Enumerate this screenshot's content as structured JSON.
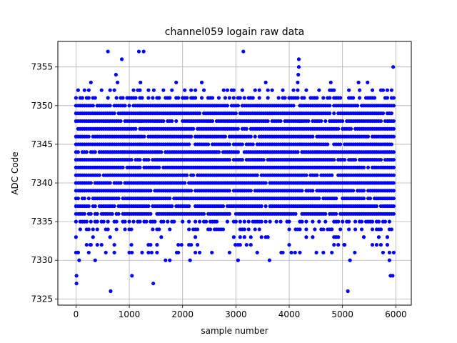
{
  "chart_data": {
    "type": "scatter",
    "title": "channel059 logain raw data",
    "xlabel": "sample number",
    "ylabel": "ADC Code",
    "xlim": [
      -340,
      6290
    ],
    "ylim": [
      7324.2,
      7358.3
    ],
    "xticks": [
      0,
      1000,
      2000,
      3000,
      4000,
      5000,
      6000
    ],
    "yticks": [
      7325,
      7330,
      7335,
      7340,
      7345,
      7350,
      7355
    ],
    "grid": true,
    "marker_color": "#0000ff",
    "band": {
      "x_start": 0,
      "x_end": 5960,
      "x_step": 40,
      "dense_levels": [
        7336,
        7337,
        7338,
        7339,
        7340,
        7341,
        7342,
        7343,
        7344,
        7345,
        7346,
        7347,
        7348,
        7349,
        7350
      ],
      "sparse_levels": [
        7331,
        7332,
        7333,
        7334,
        7335,
        7351,
        7352
      ]
    },
    "outliers": [
      {
        "x": 10,
        "y": 7327
      },
      {
        "x": 10,
        "y": 7328
      },
      {
        "x": 40,
        "y": 7331
      },
      {
        "x": 60,
        "y": 7330
      },
      {
        "x": 120,
        "y": 7351
      },
      {
        "x": 270,
        "y": 7332
      },
      {
        "x": 280,
        "y": 7353
      },
      {
        "x": 360,
        "y": 7330
      },
      {
        "x": 600,
        "y": 7357
      },
      {
        "x": 650,
        "y": 7326
      },
      {
        "x": 750,
        "y": 7354
      },
      {
        "x": 780,
        "y": 7353
      },
      {
        "x": 860,
        "y": 7356
      },
      {
        "x": 1050,
        "y": 7328
      },
      {
        "x": 1050,
        "y": 7331
      },
      {
        "x": 1180,
        "y": 7357
      },
      {
        "x": 1210,
        "y": 7353
      },
      {
        "x": 1270,
        "y": 7357
      },
      {
        "x": 1400,
        "y": 7332
      },
      {
        "x": 1420,
        "y": 7331
      },
      {
        "x": 1450,
        "y": 7327
      },
      {
        "x": 1460,
        "y": 7352
      },
      {
        "x": 1680,
        "y": 7330
      },
      {
        "x": 1760,
        "y": 7330
      },
      {
        "x": 1880,
        "y": 7353
      },
      {
        "x": 1890,
        "y": 7331
      },
      {
        "x": 1980,
        "y": 7332
      },
      {
        "x": 2140,
        "y": 7330
      },
      {
        "x": 2360,
        "y": 7353
      },
      {
        "x": 2550,
        "y": 7331
      },
      {
        "x": 2770,
        "y": 7352
      },
      {
        "x": 2990,
        "y": 7332
      },
      {
        "x": 3040,
        "y": 7330
      },
      {
        "x": 3140,
        "y": 7357
      },
      {
        "x": 3560,
        "y": 7353
      },
      {
        "x": 3630,
        "y": 7330
      },
      {
        "x": 3850,
        "y": 7331
      },
      {
        "x": 4110,
        "y": 7331
      },
      {
        "x": 4160,
        "y": 7353
      },
      {
        "x": 4170,
        "y": 7354
      },
      {
        "x": 4180,
        "y": 7355
      },
      {
        "x": 4180,
        "y": 7356
      },
      {
        "x": 4510,
        "y": 7331
      },
      {
        "x": 4640,
        "y": 7331
      },
      {
        "x": 4780,
        "y": 7353
      },
      {
        "x": 5030,
        "y": 7332
      },
      {
        "x": 5100,
        "y": 7326
      },
      {
        "x": 5140,
        "y": 7330
      },
      {
        "x": 5230,
        "y": 7331
      },
      {
        "x": 5300,
        "y": 7353
      },
      {
        "x": 5470,
        "y": 7353
      },
      {
        "x": 5880,
        "y": 7330
      },
      {
        "x": 5900,
        "y": 7328
      },
      {
        "x": 5940,
        "y": 7328
      },
      {
        "x": 5950,
        "y": 7355
      }
    ]
  }
}
